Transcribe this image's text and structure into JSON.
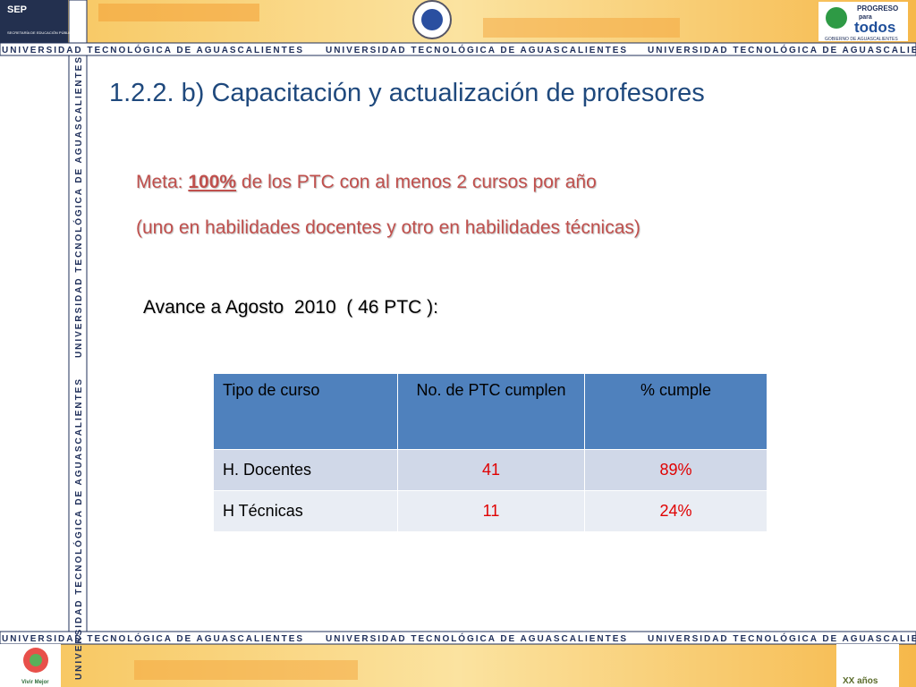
{
  "header": {
    "sep": "SEP",
    "sep_sub": "SECRETARÍA DE EDUCACIÓN PÚBLICA",
    "progreso": "PROGRESO",
    "para": "para",
    "todos": "todos",
    "gobierno": "GOBIERNO DE AGUASCALIENTES"
  },
  "banner": "UNIVERSIDAD TECNOLÓGICA DE AGUASCALIENTES",
  "title": "1.2.2. b) Capacitación y actualización de profesores",
  "goal": {
    "prefix": "Meta: ",
    "highlight": "100%",
    "rest": " de los PTC con al menos 2 cursos por año",
    "line2": "(uno en habilidades docentes y otro en habilidades técnicas)"
  },
  "progress": "Avance a Agosto  2010  ( 46 PTC ):",
  "table": {
    "header": [
      "Tipo de curso",
      "No. de PTC cumplen",
      "% cumple"
    ],
    "rows": [
      [
        "H. Docentes",
        "41",
        "89%"
      ],
      [
        "H Técnicas",
        "11",
        "24%"
      ]
    ]
  },
  "footer": {
    "vivir": "Vivir Mejor",
    "aniv": "XX años"
  }
}
